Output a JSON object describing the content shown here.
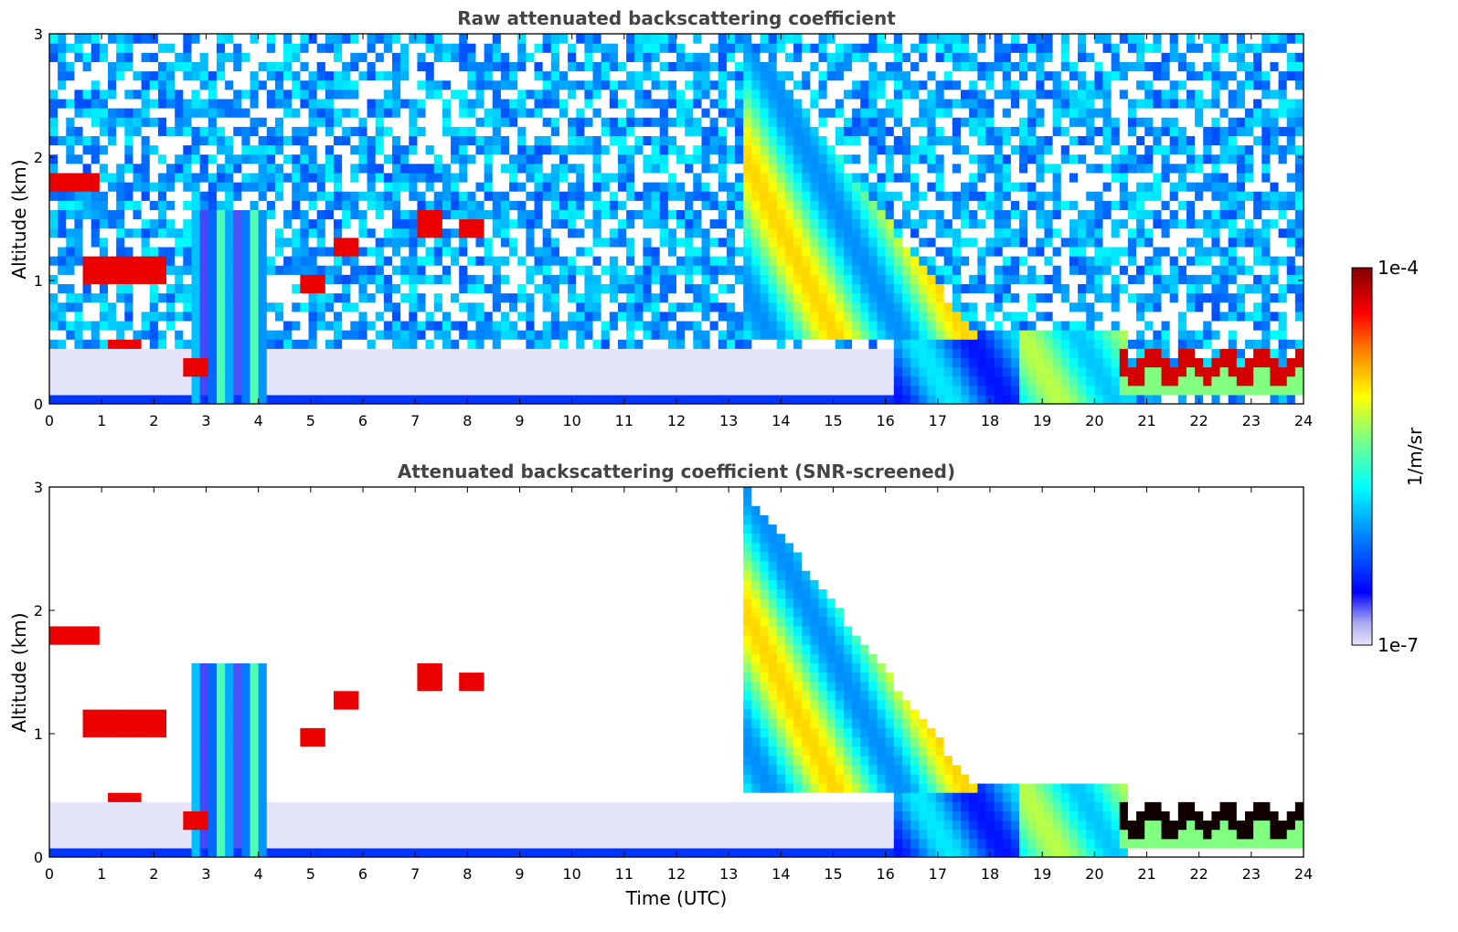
{
  "chart_data": [
    {
      "type": "heatmap",
      "title": "Raw attenuated backscattering coefficient",
      "xlabel": "",
      "ylabel": "Altitude (km)",
      "xlim": [
        0,
        24
      ],
      "ylim": [
        0,
        3
      ],
      "xticks": [
        "0",
        "1",
        "2",
        "3",
        "4",
        "5",
        "6",
        "7",
        "8",
        "9",
        "10",
        "11",
        "12",
        "13",
        "14",
        "15",
        "16",
        "17",
        "18",
        "19",
        "20",
        "21",
        "22",
        "23",
        "24"
      ],
      "yticks": [
        "0",
        "1",
        "2",
        "3"
      ],
      "features": [
        {
          "name": "surface layer (~0.05 km)",
          "t0": 0,
          "t1": 16.2,
          "z0": 0.03,
          "z1": 0.07,
          "value": "low"
        },
        {
          "name": "boundary layer",
          "t0": 16.2,
          "t1": 20.5,
          "z0": 0,
          "z1": 0.6,
          "value": "mid"
        },
        {
          "name": "clouds 0-1 UTC",
          "t0": 0,
          "t1": 1.0,
          "z0": 1.7,
          "z1": 1.9,
          "value": "high"
        },
        {
          "name": "clouds 1-2 UTC",
          "t0": 0.6,
          "t1": 2.2,
          "z0": 1.0,
          "z1": 1.2,
          "value": "high"
        },
        {
          "name": "cloud 5 UTC",
          "t0": 4.8,
          "t1": 5.3,
          "z0": 0.9,
          "z1": 1.05,
          "value": "high"
        },
        {
          "name": "cloud 5.5 UTC",
          "t0": 5.5,
          "t1": 6.0,
          "z0": 1.2,
          "z1": 1.35,
          "value": "high"
        },
        {
          "name": "cloud 7.3 UTC",
          "t0": 7.0,
          "t1": 7.6,
          "z0": 1.35,
          "z1": 1.55,
          "value": "high"
        },
        {
          "name": "cloud 8 UTC",
          "t0": 7.9,
          "t1": 8.3,
          "z0": 1.35,
          "z1": 1.5,
          "value": "high"
        },
        {
          "name": "descending aerosol layer",
          "t0": 13.3,
          "t1": 20.5,
          "z0": 0.3,
          "z1": 3.0,
          "value": "high"
        },
        {
          "name": "nocturnal cloud layer",
          "t0": 20.5,
          "t1": 24,
          "z0": 0.1,
          "z1": 0.55,
          "value": "high"
        }
      ]
    },
    {
      "type": "heatmap",
      "title": "Attenuated backscattering coefficient (SNR-screened)",
      "xlabel": "Time (UTC)",
      "ylabel": "Altitude (km)",
      "xlim": [
        0,
        24
      ],
      "ylim": [
        0,
        3
      ],
      "xticks": [
        "0",
        "1",
        "2",
        "3",
        "4",
        "5",
        "6",
        "7",
        "8",
        "9",
        "10",
        "11",
        "12",
        "13",
        "14",
        "15",
        "16",
        "17",
        "18",
        "19",
        "20",
        "21",
        "22",
        "23",
        "24"
      ],
      "yticks": [
        "0",
        "1",
        "2",
        "3"
      ],
      "features": [
        {
          "name": "low-signal region",
          "t0": 0,
          "t1": 16.2,
          "z0": 0,
          "z1": 0.45,
          "value": "very low"
        },
        {
          "name": "aerosol plume",
          "t0": 13.3,
          "t1": 20.5,
          "z0": 0.3,
          "z1": 3.0,
          "value": "high"
        },
        {
          "name": "cloud layer",
          "t0": 20.5,
          "t1": 24,
          "z0": 0.1,
          "z1": 0.55,
          "value": "saturated"
        }
      ]
    }
  ],
  "colorbar": {
    "label": "1/m/sr",
    "max_label": "1e-4",
    "min_label": "1e-7",
    "range": [
      1e-07,
      0.0001
    ],
    "scale": "log",
    "colormap": "jet",
    "stops": [
      "#e8e8f8",
      "#0000ff",
      "#00a0ff",
      "#00ffff",
      "#80ff80",
      "#ffff00",
      "#ff8000",
      "#ff0000",
      "#800000"
    ]
  },
  "colors": {
    "title": "#444444",
    "axis": "#000000",
    "background": "#ffffff"
  }
}
